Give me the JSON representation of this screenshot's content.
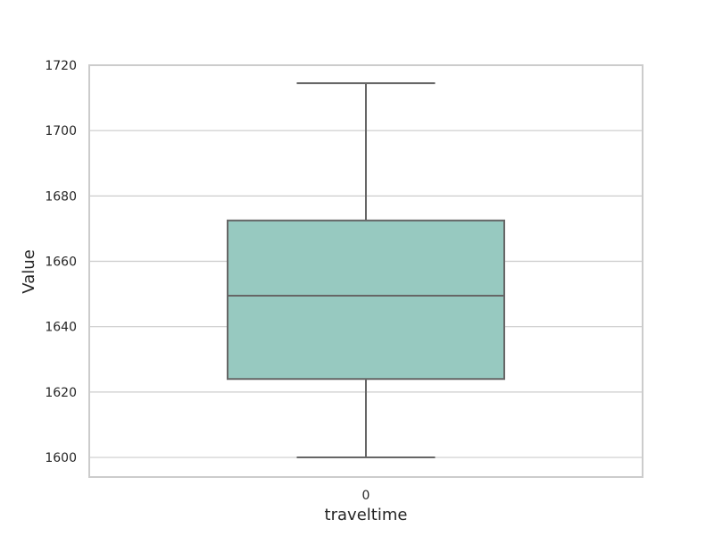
{
  "chart_data": {
    "type": "box",
    "title": "",
    "xlabel": "traveltime",
    "ylabel": "Value",
    "categories": [
      "0"
    ],
    "boxes": [
      {
        "category": "0",
        "whisker_low": 1600,
        "q1": 1624,
        "median": 1649.5,
        "q3": 1672.5,
        "whisker_high": 1714.5
      }
    ],
    "ylim": [
      1594,
      1720
    ],
    "yticks": [
      1600,
      1620,
      1640,
      1660,
      1680,
      1700,
      1720
    ],
    "grid": true,
    "colors": {
      "box_fill": "#97c9c0",
      "box_line": "#666666",
      "grid": "#cccccc",
      "frame": "#cccccc",
      "text": "#262626"
    }
  }
}
